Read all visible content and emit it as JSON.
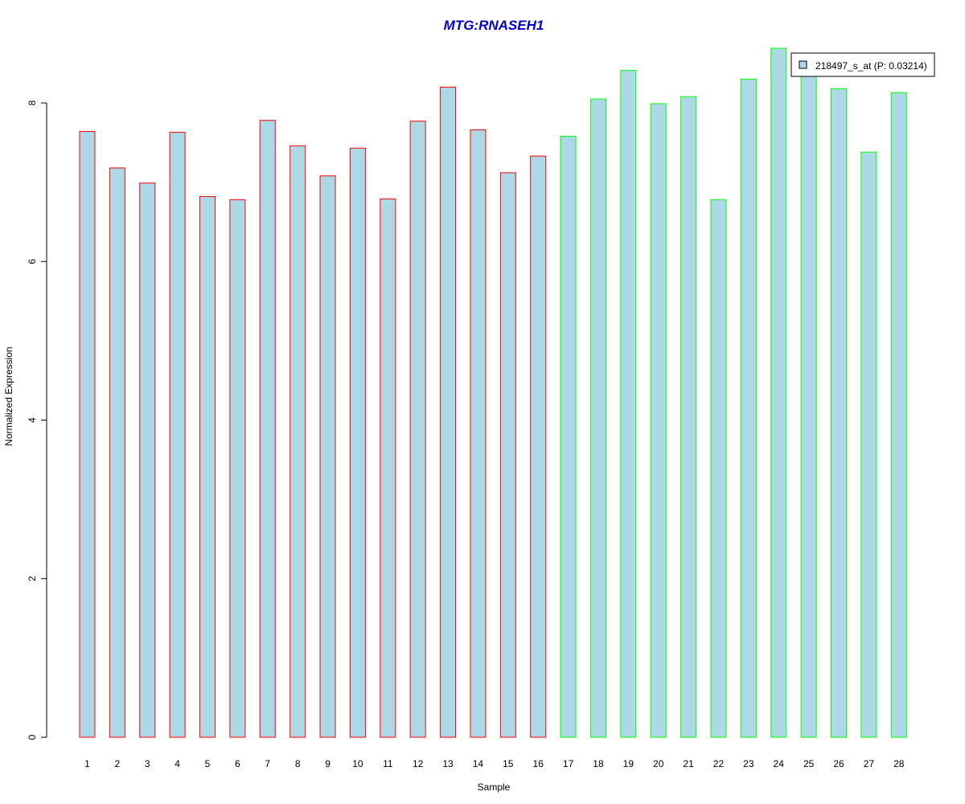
{
  "chart_data": {
    "type": "bar",
    "title": "MTG:RNASEH1",
    "xlabel": "Sample",
    "ylabel": "Normalized Expression",
    "categories": [
      "1",
      "2",
      "3",
      "4",
      "5",
      "6",
      "7",
      "8",
      "9",
      "10",
      "11",
      "12",
      "13",
      "14",
      "15",
      "16",
      "17",
      "18",
      "19",
      "20",
      "21",
      "22",
      "23",
      "24",
      "25",
      "26",
      "27",
      "28"
    ],
    "series": [
      {
        "name": "218497_s_at (P: 0.03214)",
        "values": [
          7.64,
          7.18,
          6.99,
          7.63,
          6.82,
          6.78,
          7.78,
          7.46,
          7.08,
          7.43,
          6.79,
          7.77,
          8.2,
          7.66,
          7.12,
          7.33,
          7.58,
          8.05,
          8.41,
          7.99,
          8.08,
          6.78,
          8.3,
          8.69,
          8.35,
          8.18,
          7.38,
          8.13
        ]
      }
    ],
    "yticks": [
      0,
      2,
      4,
      6,
      8
    ],
    "ylim": [
      0,
      8.69
    ],
    "grid": false,
    "legend_position": "top-right",
    "fill_color": "#add8e6",
    "group_border_colors": [
      "#ff0000",
      "#00ff00"
    ],
    "group_split_after_category": "16",
    "title_color": "#0000cc"
  }
}
